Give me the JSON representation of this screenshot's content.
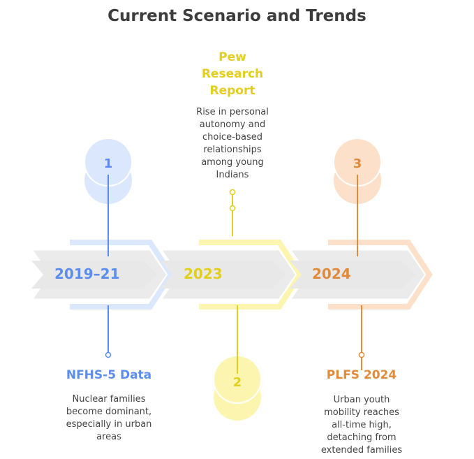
{
  "title": "Current Scenario and Trends",
  "colors": {
    "blue": "#5b8def",
    "yellow": "#e2cf1d",
    "orange": "#e08a3c",
    "blue_light": "#dbe7fd",
    "yellow_light": "#fbf5b0",
    "orange_light": "#fde0c9",
    "gray": "#e8e8e8"
  },
  "milestones": [
    {
      "number": "1",
      "year": "2019–21",
      "heading": "NFHS-5 Data",
      "description": [
        "Nuclear families",
        "become dominant,",
        "especially in urban",
        "areas"
      ]
    },
    {
      "number": "2",
      "year": "2023",
      "heading": "Pew Research Report",
      "heading_lines": [
        "Pew",
        "Research",
        "Report"
      ],
      "description": [
        "Rise in personal",
        "autonomy and",
        "choice-based",
        "relationships",
        "among young",
        "Indians"
      ]
    },
    {
      "number": "3",
      "year": "2024",
      "heading": "PLFS 2024",
      "description": [
        "Urban youth",
        "mobility reaches",
        "all-time high,",
        "detaching from",
        "extended families"
      ]
    }
  ]
}
